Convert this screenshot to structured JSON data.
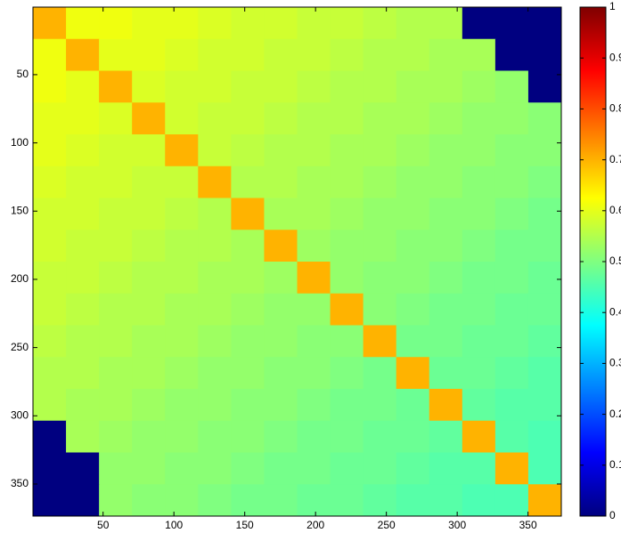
{
  "chart_data": {
    "type": "heatmap",
    "colormap": "jet",
    "y_reversed": true,
    "xlim": [
      0.5,
      373.5
    ],
    "ylim": [
      0.5,
      373.5
    ],
    "xticks": [
      50,
      100,
      150,
      200,
      250,
      300,
      350
    ],
    "yticks": [
      50,
      100,
      150,
      200,
      250,
      300,
      350
    ],
    "clim": [
      0,
      1
    ],
    "cticks": [
      0,
      0.1,
      0.2,
      0.3,
      0.4,
      0.5,
      0.6,
      0.7,
      0.8,
      0.9,
      1
    ],
    "z": [
      [
        0.7,
        0.61,
        0.61,
        0.6,
        0.6,
        0.59,
        0.58,
        0.58,
        0.57,
        0.57,
        0.56,
        0.55,
        0.55,
        0,
        0,
        0
      ],
      [
        0.61,
        0.7,
        0.6,
        0.6,
        0.59,
        0.58,
        0.58,
        0.57,
        0.57,
        0.56,
        0.55,
        0.55,
        0.54,
        0.54,
        0,
        0
      ],
      [
        0.61,
        0.6,
        0.7,
        0.59,
        0.58,
        0.58,
        0.57,
        0.57,
        0.56,
        0.55,
        0.55,
        0.54,
        0.54,
        0.53,
        0.52,
        0
      ],
      [
        0.6,
        0.6,
        0.59,
        0.7,
        0.58,
        0.57,
        0.57,
        0.56,
        0.55,
        0.55,
        0.54,
        0.54,
        0.53,
        0.52,
        0.52,
        0.51
      ],
      [
        0.6,
        0.59,
        0.58,
        0.58,
        0.7,
        0.57,
        0.56,
        0.55,
        0.55,
        0.54,
        0.54,
        0.53,
        0.52,
        0.52,
        0.51,
        0.51
      ],
      [
        0.59,
        0.58,
        0.58,
        0.57,
        0.57,
        0.7,
        0.55,
        0.55,
        0.54,
        0.54,
        0.53,
        0.52,
        0.52,
        0.51,
        0.51,
        0.5
      ],
      [
        0.58,
        0.58,
        0.57,
        0.57,
        0.56,
        0.55,
        0.7,
        0.54,
        0.54,
        0.53,
        0.52,
        0.52,
        0.51,
        0.51,
        0.5,
        0.49
      ],
      [
        0.58,
        0.57,
        0.57,
        0.56,
        0.55,
        0.55,
        0.54,
        0.7,
        0.53,
        0.52,
        0.52,
        0.51,
        0.51,
        0.5,
        0.49,
        0.49
      ],
      [
        0.57,
        0.57,
        0.56,
        0.55,
        0.55,
        0.54,
        0.54,
        0.53,
        0.7,
        0.52,
        0.51,
        0.51,
        0.5,
        0.49,
        0.49,
        0.48
      ],
      [
        0.57,
        0.56,
        0.55,
        0.55,
        0.54,
        0.54,
        0.53,
        0.52,
        0.52,
        0.7,
        0.51,
        0.5,
        0.49,
        0.49,
        0.48,
        0.48
      ],
      [
        0.56,
        0.55,
        0.55,
        0.54,
        0.54,
        0.53,
        0.52,
        0.52,
        0.51,
        0.51,
        0.7,
        0.49,
        0.49,
        0.48,
        0.48,
        0.47
      ],
      [
        0.55,
        0.55,
        0.54,
        0.54,
        0.53,
        0.52,
        0.52,
        0.51,
        0.51,
        0.5,
        0.49,
        0.7,
        0.48,
        0.48,
        0.47,
        0.46
      ],
      [
        0.55,
        0.54,
        0.54,
        0.53,
        0.52,
        0.52,
        0.51,
        0.51,
        0.5,
        0.49,
        0.49,
        0.48,
        0.7,
        0.47,
        0.46,
        0.46
      ],
      [
        0,
        0.54,
        0.53,
        0.52,
        0.52,
        0.51,
        0.51,
        0.5,
        0.49,
        0.49,
        0.48,
        0.48,
        0.47,
        0.7,
        0.46,
        0.45
      ],
      [
        0,
        0,
        0.52,
        0.52,
        0.51,
        0.51,
        0.5,
        0.49,
        0.49,
        0.48,
        0.48,
        0.47,
        0.46,
        0.46,
        0.7,
        0.45
      ],
      [
        0,
        0,
        0.52,
        0.51,
        0.51,
        0.5,
        0.49,
        0.49,
        0.48,
        0.48,
        0.47,
        0.46,
        0.46,
        0.45,
        0.45,
        0.7
      ]
    ]
  }
}
